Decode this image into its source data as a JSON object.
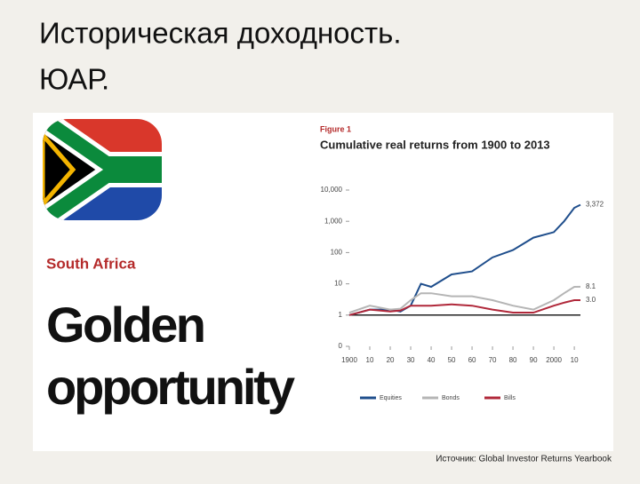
{
  "slide": {
    "title_lines": [
      "Историческая доходность.",
      "ЮАР."
    ],
    "panel": {
      "kicker": "South Africa",
      "headline_lines": [
        "Golden",
        "opportunity"
      ]
    },
    "source": "Источник: Global Investor Returns Yearbook"
  },
  "chart_data": {
    "type": "line",
    "figure_label": "Figure 1",
    "title": "Cumulative real returns from 1900 to 2013",
    "x": [
      1900,
      1910,
      1920,
      1925,
      1930,
      1935,
      1940,
      1950,
      1960,
      1970,
      1980,
      1990,
      2000,
      2005,
      2010,
      2013
    ],
    "series": [
      {
        "name": "Equities",
        "color": "#1f4e8c",
        "values": [
          1,
          1.5,
          1.5,
          1.3,
          2,
          10,
          8,
          20,
          25,
          70,
          120,
          300,
          450,
          1000,
          2700,
          3372
        ],
        "value_labels": [
          null,
          null,
          null,
          null,
          null,
          null,
          null,
          null,
          null,
          null,
          null,
          null,
          null,
          null,
          null,
          "3,372"
        ]
      },
      {
        "name": "Bonds",
        "color": "#b5b5b5",
        "values": [
          1.2,
          2,
          1.5,
          1.6,
          3,
          5,
          5,
          4,
          4,
          3,
          2,
          1.5,
          3,
          5,
          8,
          8.1
        ],
        "value_labels": [
          null,
          null,
          null,
          null,
          null,
          null,
          null,
          null,
          null,
          null,
          null,
          null,
          null,
          null,
          null,
          "8.1"
        ]
      },
      {
        "name": "Bills",
        "color": "#b0283a",
        "values": [
          1,
          1.5,
          1.3,
          1.4,
          2,
          2,
          2,
          2.2,
          2,
          1.5,
          1.2,
          1.2,
          2,
          2.5,
          3,
          3.0
        ],
        "value_labels": [
          null,
          null,
          null,
          null,
          null,
          null,
          null,
          null,
          null,
          null,
          null,
          null,
          null,
          null,
          null,
          "3.0"
        ]
      }
    ],
    "log_y": true,
    "xlim": [
      1900,
      2013
    ],
    "xticks": [
      {
        "value": 1900,
        "label": "1900"
      },
      {
        "value": 1910,
        "label": "10"
      },
      {
        "value": 1920,
        "label": "20"
      },
      {
        "value": 1930,
        "label": "30"
      },
      {
        "value": 1940,
        "label": "40"
      },
      {
        "value": 1950,
        "label": "50"
      },
      {
        "value": 1960,
        "label": "60"
      },
      {
        "value": 1970,
        "label": "70"
      },
      {
        "value": 1980,
        "label": "80"
      },
      {
        "value": 1990,
        "label": "90"
      },
      {
        "value": 2000,
        "label": "2000"
      },
      {
        "value": 2010,
        "label": "10"
      }
    ],
    "ylim": [
      0.1,
      10000
    ],
    "yticks": [
      {
        "value": 10000,
        "label": "10,000"
      },
      {
        "value": 1000,
        "label": "1,000"
      },
      100,
      10,
      1,
      {
        "value": 0.1,
        "label": "0"
      }
    ]
  }
}
